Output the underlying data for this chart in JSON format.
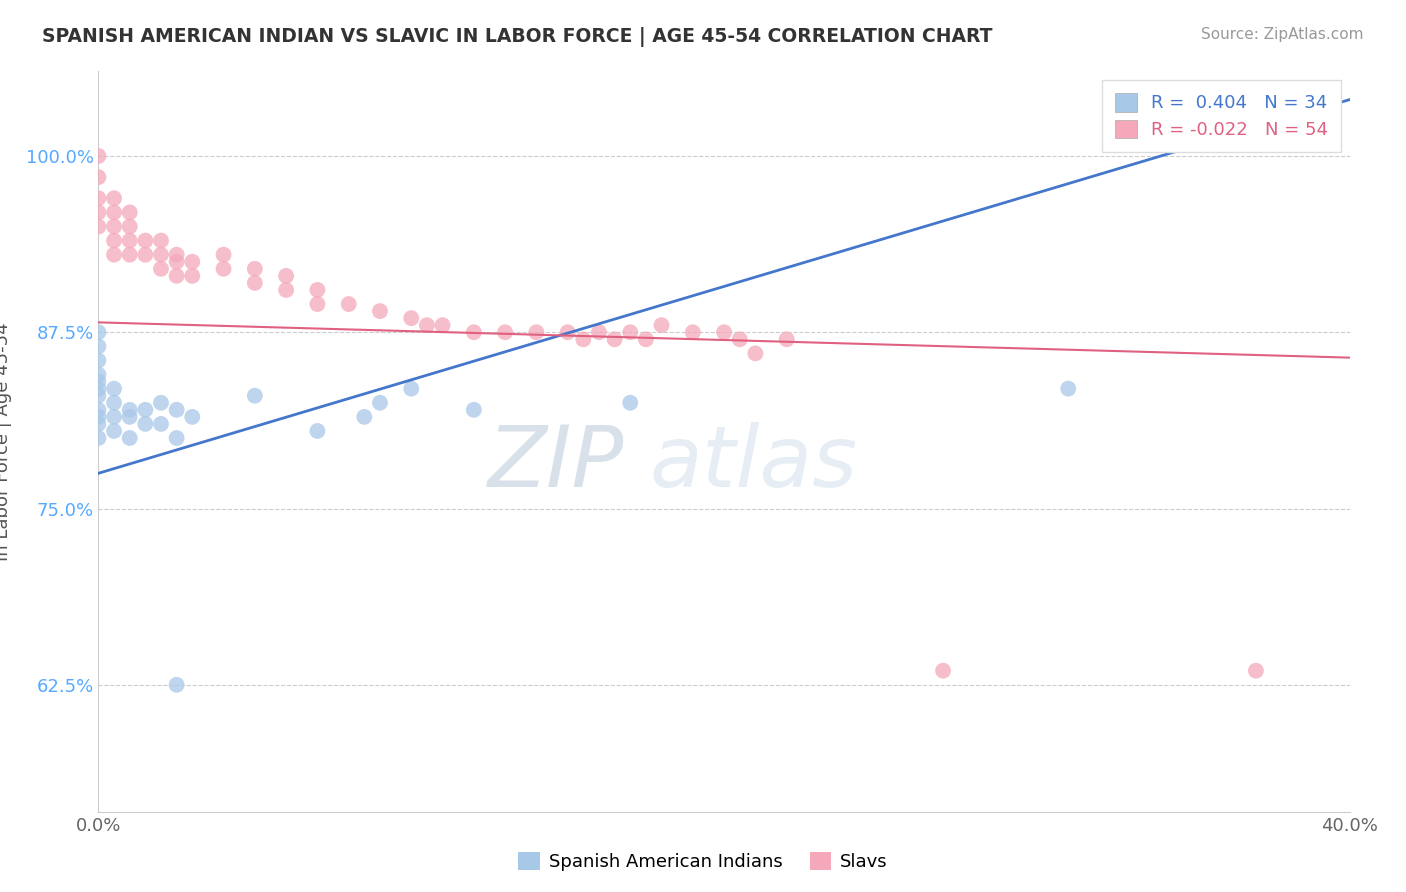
{
  "title": "SPANISH AMERICAN INDIAN VS SLAVIC IN LABOR FORCE | AGE 45-54 CORRELATION CHART",
  "source": "Source: ZipAtlas.com",
  "ylabel": "In Labor Force | Age 45-54",
  "xlim": [
    0.0,
    0.4
  ],
  "ylim": [
    0.535,
    1.06
  ],
  "xticks": [
    0.0,
    0.4
  ],
  "xtick_labels": [
    "0.0%",
    "40.0%"
  ],
  "yticks": [
    0.625,
    0.75,
    0.875,
    1.0
  ],
  "ytick_labels": [
    "62.5%",
    "75.0%",
    "87.5%",
    "100.0%"
  ],
  "blue_R": 0.404,
  "blue_N": 34,
  "pink_R": -0.022,
  "pink_N": 54,
  "legend_label_blue": "Spanish American Indians",
  "legend_label_pink": "Slavs",
  "blue_color": "#A8C8E8",
  "pink_color": "#F4A8BA",
  "blue_line_color": "#4477CC",
  "pink_line_color": "#E06080",
  "blue_x": [
    0.0,
    0.0,
    0.0,
    0.0,
    0.0,
    0.0,
    0.0,
    0.0,
    0.0,
    0.0,
    0.0,
    0.005,
    0.005,
    0.005,
    0.005,
    0.01,
    0.01,
    0.01,
    0.015,
    0.015,
    0.02,
    0.02,
    0.025,
    0.025,
    0.03,
    0.05,
    0.07,
    0.085,
    0.09,
    0.1,
    0.12,
    0.17,
    0.31,
    0.025
  ],
  "blue_y": [
    0.875,
    0.865,
    0.855,
    0.845,
    0.84,
    0.835,
    0.83,
    0.82,
    0.815,
    0.81,
    0.8,
    0.835,
    0.825,
    0.815,
    0.805,
    0.82,
    0.815,
    0.8,
    0.82,
    0.81,
    0.825,
    0.81,
    0.82,
    0.8,
    0.815,
    0.83,
    0.805,
    0.815,
    0.825,
    0.835,
    0.82,
    0.825,
    0.835,
    0.625
  ],
  "pink_x": [
    0.0,
    0.0,
    0.0,
    0.0,
    0.0,
    0.005,
    0.005,
    0.005,
    0.005,
    0.005,
    0.01,
    0.01,
    0.01,
    0.01,
    0.015,
    0.015,
    0.02,
    0.02,
    0.02,
    0.025,
    0.025,
    0.025,
    0.03,
    0.03,
    0.04,
    0.04,
    0.05,
    0.05,
    0.06,
    0.06,
    0.07,
    0.07,
    0.08,
    0.09,
    0.1,
    0.105,
    0.11,
    0.12,
    0.13,
    0.14,
    0.15,
    0.155,
    0.16,
    0.165,
    0.17,
    0.175,
    0.18,
    0.19,
    0.2,
    0.205,
    0.21,
    0.22,
    0.27,
    0.37
  ],
  "pink_y": [
    1.0,
    0.985,
    0.97,
    0.96,
    0.95,
    0.97,
    0.96,
    0.95,
    0.94,
    0.93,
    0.96,
    0.95,
    0.94,
    0.93,
    0.94,
    0.93,
    0.94,
    0.93,
    0.92,
    0.93,
    0.925,
    0.915,
    0.925,
    0.915,
    0.93,
    0.92,
    0.92,
    0.91,
    0.915,
    0.905,
    0.905,
    0.895,
    0.895,
    0.89,
    0.885,
    0.88,
    0.88,
    0.875,
    0.875,
    0.875,
    0.875,
    0.87,
    0.875,
    0.87,
    0.875,
    0.87,
    0.88,
    0.875,
    0.875,
    0.87,
    0.86,
    0.87,
    0.635,
    0.635
  ],
  "blue_line_x0": 0.0,
  "blue_line_x1": 0.4,
  "pink_line_x0": 0.0,
  "pink_line_x1": 0.4,
  "blue_line_y0": 0.775,
  "blue_line_y1": 1.04,
  "pink_line_y0": 0.882,
  "pink_line_y1": 0.857
}
